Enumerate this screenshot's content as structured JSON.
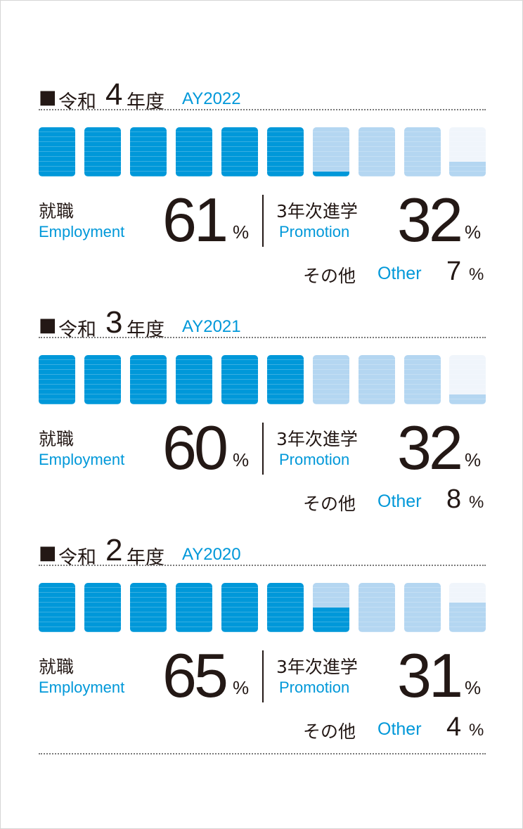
{
  "chart_data": [
    {
      "type": "bar",
      "title": "令和4年度 AY2022",
      "era_label": "令和",
      "era_year": "4",
      "fiscal_label": "年度",
      "ay_label": "AY2022",
      "segments": 10,
      "values": {
        "employment": 61,
        "promotion": 32,
        "other": 7
      },
      "employment": {
        "label_jp": "就職",
        "label_en": "Employment",
        "value": "61",
        "unit": "%"
      },
      "promotion": {
        "label_jp": "3年次進学",
        "label_en": "Promotion",
        "value": "32",
        "unit": "%"
      },
      "other": {
        "label_jp": "その他",
        "label_en": "Other",
        "value": "7",
        "unit": "%"
      }
    },
    {
      "type": "bar",
      "title": "令和3年度 AY2021",
      "era_label": "令和",
      "era_year": "3",
      "fiscal_label": "年度",
      "ay_label": "AY2021",
      "segments": 10,
      "values": {
        "employment": 60,
        "promotion": 32,
        "other": 8
      },
      "employment": {
        "label_jp": "就職",
        "label_en": "Employment",
        "value": "60",
        "unit": "%"
      },
      "promotion": {
        "label_jp": "3年次進学",
        "label_en": "Promotion",
        "value": "32",
        "unit": "%"
      },
      "other": {
        "label_jp": "その他",
        "label_en": "Other",
        "value": "8",
        "unit": "%"
      }
    },
    {
      "type": "bar",
      "title": "令和2年度 AY2020",
      "era_label": "令和",
      "era_year": "2",
      "fiscal_label": "年度",
      "ay_label": "AY2020",
      "segments": 10,
      "values": {
        "employment": 65,
        "promotion": 31,
        "other": 4
      },
      "employment": {
        "label_jp": "就職",
        "label_en": "Employment",
        "value": "65",
        "unit": "%"
      },
      "promotion": {
        "label_jp": "3年次進学",
        "label_en": "Promotion",
        "value": "31",
        "unit": "%"
      },
      "other": {
        "label_jp": "その他",
        "label_en": "Other",
        "value": "4",
        "unit": "%"
      }
    }
  ],
  "heading_marker": "■",
  "colors": {
    "employment": "#0098d9",
    "promotion": "#b4d6f1",
    "other": "#f0f5fb",
    "text": "#231815",
    "accent": "#0098d9"
  }
}
